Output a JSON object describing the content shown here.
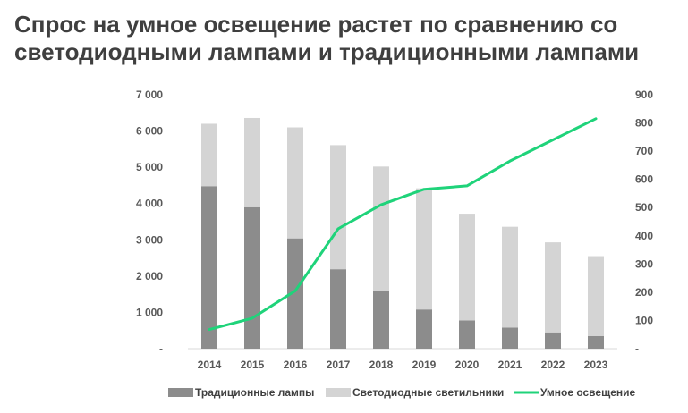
{
  "title": "Спрос на умное освещение растет по сравнению со светодиодными лампами и традиционными лампами",
  "chart_data": {
    "type": "bar",
    "categories": [
      "2014",
      "2015",
      "2016",
      "2017",
      "2018",
      "2019",
      "2020",
      "2021",
      "2022",
      "2023"
    ],
    "series": [
      {
        "name": "Традиционные лампы",
        "kind": "bar",
        "axis": "left",
        "color": "#8c8c8c",
        "values": [
          4480,
          3900,
          3040,
          2190,
          1590,
          1080,
          780,
          580,
          450,
          350
        ]
      },
      {
        "name": "Светодиодные светильники",
        "kind": "bar",
        "axis": "left",
        "color": "#d4d4d4",
        "values": [
          1720,
          2460,
          3060,
          3420,
          3430,
          3340,
          2940,
          2780,
          2480,
          2200
        ]
      },
      {
        "name": "Умное освещение",
        "kind": "line",
        "axis": "right",
        "color": "#1fd37a",
        "values": [
          68,
          108,
          205,
          425,
          510,
          565,
          577,
          665,
          740,
          815
        ]
      }
    ],
    "y_left": {
      "min": 0,
      "max": 7000,
      "step": 1000,
      "tick_labels": [
        "-",
        "1 000",
        "2 000",
        "3 000",
        "4 000",
        "5 000",
        "6 000",
        "7 000"
      ]
    },
    "y_right": {
      "min": 0,
      "max": 900,
      "step": 100,
      "tick_labels": [
        "-",
        "100",
        "200",
        "300",
        "400",
        "500",
        "600",
        "700",
        "800",
        "900"
      ]
    },
    "stacked": true,
    "grid": false,
    "legend_position": "bottom"
  }
}
